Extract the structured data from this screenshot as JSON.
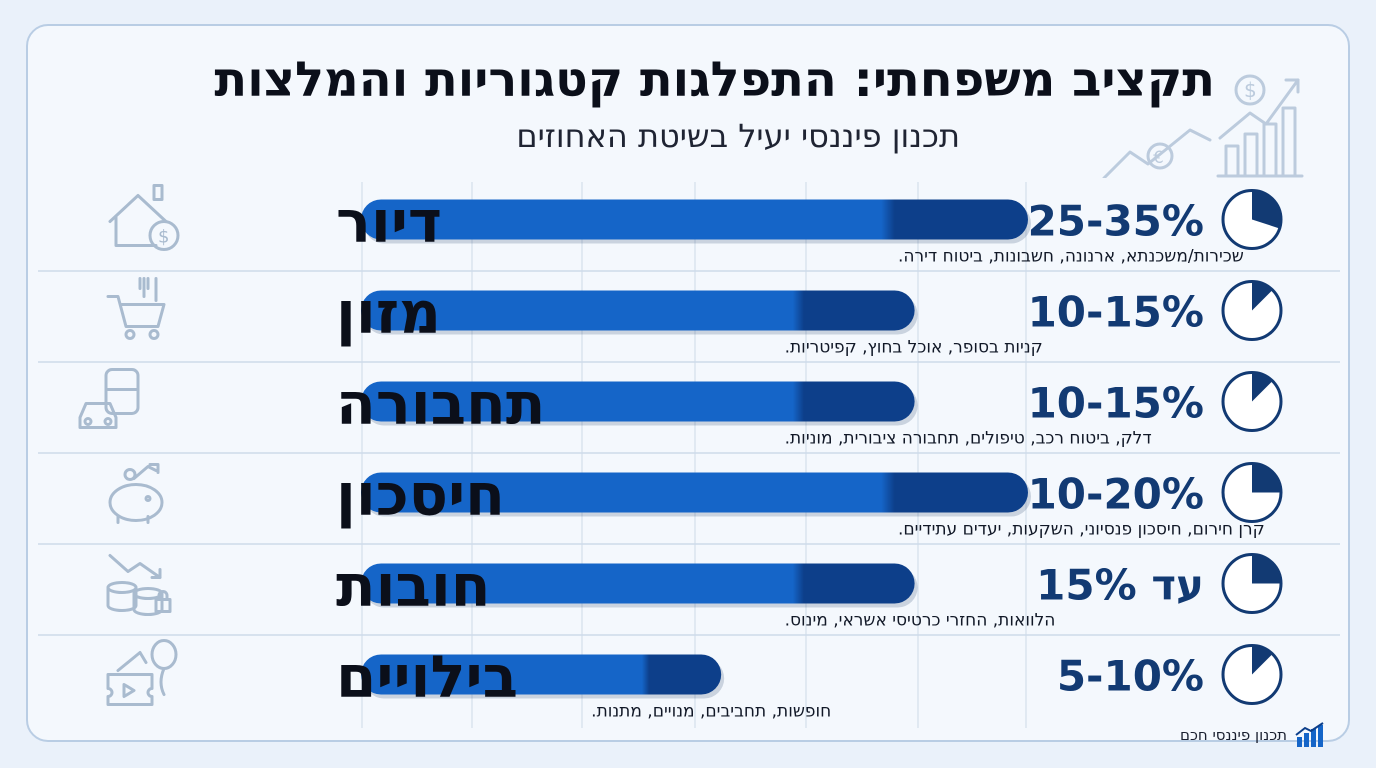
{
  "header": {
    "title": "תקציב משפחתי: התפלגות קטגוריות והמלצות",
    "subtitle": "תכנון פיננסי יעיל בשיטת האחוזים"
  },
  "footer": {
    "brand": "תכנון פיננסי חכם"
  },
  "colors": {
    "bar_main": "#1565c8",
    "bar_dark": "#0d3f8a",
    "text_dark": "#0b0f1a",
    "percent": "#123a73",
    "icon": "#a9bbcf"
  },
  "chart_data": {
    "type": "bar",
    "orientation": "horizontal",
    "title": "תקציב משפחתי: התפלגות קטגוריות והמלצות",
    "subtitle": "תכנון פיננסי יעיל בשיטת האחוזים",
    "xlim": [
      0,
      20
    ],
    "grid": true,
    "categories": [
      "דיור",
      "מזון",
      "תחבורה",
      "חיסכון",
      "חובות",
      "בילויים"
    ],
    "items": [
      {
        "category": "דיור",
        "percent_label": "25-35%",
        "low": 25,
        "high": 35,
        "description": "שכירות/משכנתא, ארנונה, חשבונות, ביטוח דירה.",
        "icon": "house-dollar-icon"
      },
      {
        "category": "מזון",
        "percent_label": "10-15%",
        "low": 10,
        "high": 15,
        "description": "קניות בסופר, אוכל בחוץ, קפיטריות.",
        "icon": "shopping-cart-icon"
      },
      {
        "category": "תחבורה",
        "percent_label": "10-15%",
        "low": 10,
        "high": 15,
        "description": "דלק, ביטוח רכב, טיפולים, תחבורה ציבורית, מוניות.",
        "icon": "car-bus-icon"
      },
      {
        "category": "חיסכון",
        "percent_label": "10-20%",
        "low": 10,
        "high": 20,
        "description": "קרן חירום, חיסכון פנסיוני, השקעות, יעדים עתידיים.",
        "icon": "piggy-bank-icon"
      },
      {
        "category": "חובות",
        "percent_label": "עד 15%",
        "low": 0,
        "high": 15,
        "description": "הלוואות, החזרי כרטיסי אשראי, מינוס.",
        "icon": "coins-lock-icon"
      },
      {
        "category": "בילויים",
        "percent_label": "5-10%",
        "low": 5,
        "high": 10,
        "description": "חופשות, תחביבים, מנויים, מתנות.",
        "icon": "ticket-balloon-icon"
      }
    ],
    "bar_fill_fraction": [
      1.0,
      0.83,
      0.83,
      1.0,
      0.83,
      0.54
    ],
    "pie_fraction": [
      0.3,
      0.125,
      0.125,
      0.25,
      0.25,
      0.125
    ]
  }
}
